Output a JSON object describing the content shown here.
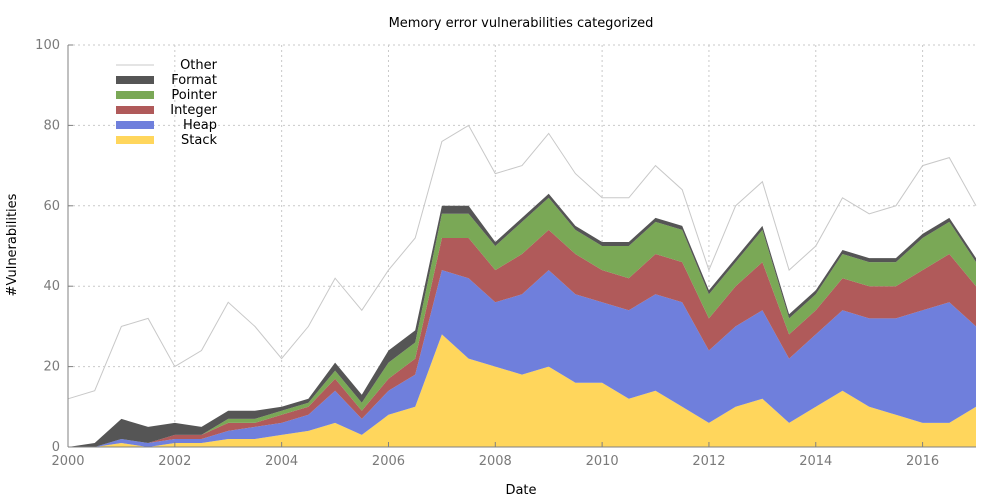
{
  "chart_data": {
    "type": "area",
    "title": "Memory error vulnerabilities categorized",
    "xlabel": "Date",
    "ylabel": "#Vulnerabilities",
    "xlim": [
      2000,
      2017.0
    ],
    "ylim": [
      0,
      100
    ],
    "x_ticks": [
      "2000",
      "2002",
      "2004",
      "2006",
      "2008",
      "2010",
      "2012",
      "2014",
      "2016"
    ],
    "y_ticks": [
      "0",
      "20",
      "40",
      "60",
      "80",
      "100"
    ],
    "grid": true,
    "legend_position": "top-left",
    "stacking_order": [
      "Stack",
      "Heap",
      "Integer",
      "Pointer",
      "Format"
    ],
    "legend_order": [
      "Other",
      "Format",
      "Pointer",
      "Integer",
      "Heap",
      "Stack"
    ],
    "colors": {
      "Stack": "#ffd65c",
      "Heap": "#6f7fdc",
      "Integer": "#b05a5a",
      "Pointer": "#7aa856",
      "Format": "#555555",
      "Other": "#c8c8c8"
    },
    "x": [
      2000.0,
      2000.5,
      2001.0,
      2001.5,
      2002.0,
      2002.5,
      2003.0,
      2003.5,
      2004.0,
      2004.5,
      2005.0,
      2005.5,
      2006.0,
      2006.5,
      2007.0,
      2007.5,
      2008.0,
      2008.5,
      2009.0,
      2009.5,
      2010.0,
      2010.5,
      2011.0,
      2011.5,
      2012.0,
      2012.5,
      2013.0,
      2013.5,
      2014.0,
      2014.5,
      2015.0,
      2015.5,
      2016.0,
      2016.5,
      2017.0
    ],
    "series": [
      {
        "name": "Stack",
        "values": [
          0,
          0,
          1,
          0,
          1,
          1,
          2,
          2,
          3,
          4,
          6,
          3,
          8,
          10,
          28,
          22,
          20,
          18,
          20,
          16,
          16,
          12,
          14,
          10,
          6,
          10,
          12,
          6,
          10,
          14,
          10,
          8,
          6,
          6,
          10
        ]
      },
      {
        "name": "Heap",
        "values": [
          0,
          0,
          1,
          1,
          1,
          1,
          2,
          3,
          3,
          4,
          8,
          4,
          6,
          8,
          16,
          20,
          16,
          20,
          24,
          22,
          20,
          22,
          24,
          26,
          18,
          20,
          22,
          16,
          18,
          20,
          22,
          24,
          28,
          30,
          20
        ]
      },
      {
        "name": "Integer",
        "values": [
          0,
          0,
          0,
          0,
          1,
          1,
          2,
          1,
          2,
          2,
          3,
          2,
          3,
          4,
          8,
          10,
          8,
          10,
          10,
          10,
          8,
          8,
          10,
          10,
          8,
          10,
          12,
          6,
          6,
          8,
          8,
          8,
          10,
          12,
          10
        ]
      },
      {
        "name": "Pointer",
        "values": [
          0,
          0,
          0,
          0,
          0,
          0,
          1,
          1,
          1,
          1,
          2,
          2,
          4,
          4,
          6,
          6,
          6,
          8,
          8,
          6,
          6,
          8,
          8,
          8,
          6,
          6,
          8,
          4,
          4,
          6,
          6,
          6,
          8,
          8,
          6
        ]
      },
      {
        "name": "Format",
        "values": [
          0,
          1,
          5,
          4,
          3,
          2,
          2,
          2,
          1,
          1,
          2,
          2,
          3,
          3,
          2,
          2,
          1,
          1,
          1,
          1,
          1,
          1,
          1,
          1,
          1,
          1,
          1,
          1,
          1,
          1,
          1,
          1,
          1,
          1,
          1
        ]
      },
      {
        "name": "Other",
        "values": [
          12,
          14,
          30,
          32,
          20,
          24,
          36,
          30,
          22,
          30,
          42,
          34,
          44,
          52,
          76,
          80,
          68,
          70,
          78,
          68,
          62,
          62,
          70,
          64,
          44,
          60,
          66,
          44,
          50,
          62,
          58,
          60,
          70,
          72,
          60
        ]
      }
    ]
  }
}
